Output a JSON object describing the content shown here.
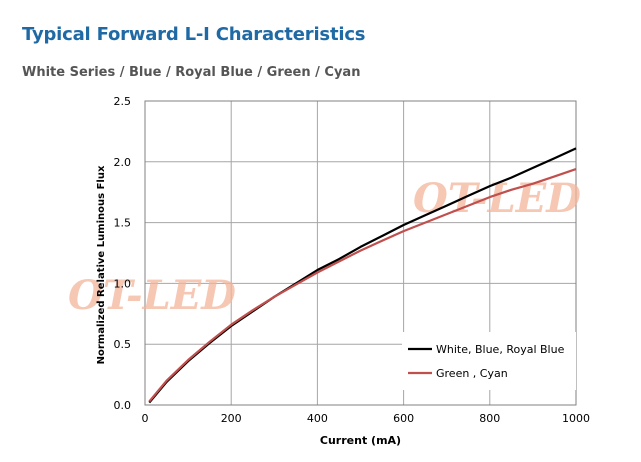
{
  "header": {
    "title": "Typical Forward L-I Characteristics",
    "subtitle": "White Series / Blue / Royal Blue / Green / Cyan"
  },
  "watermark": {
    "text_1": "OT-LED",
    "text_2": "OT-LED",
    "color": "#f3b59a"
  },
  "chart_data": {
    "type": "line",
    "xlabel": "Current (mA)",
    "ylabel": "Normalized Relative Luminous Flux",
    "xlim": [
      0,
      1000
    ],
    "ylim": [
      0,
      2.5
    ],
    "x_ticks": [
      "0",
      "200",
      "400",
      "600",
      "800",
      "1000"
    ],
    "y_ticks": [
      "0.0",
      "0.5",
      "1.0",
      "1.5",
      "2.0",
      "2.5"
    ],
    "grid": true,
    "legend_position": "bottom-right",
    "series": [
      {
        "name": "White, Blue, Royal Blue",
        "color": "#000000",
        "x": [
          10,
          50,
          100,
          150,
          200,
          250,
          300,
          350,
          400,
          450,
          500,
          550,
          600,
          650,
          700,
          750,
          800,
          850,
          900,
          950,
          1000
        ],
        "y": [
          0.02,
          0.19,
          0.36,
          0.51,
          0.65,
          0.77,
          0.89,
          1.0,
          1.11,
          1.2,
          1.3,
          1.39,
          1.48,
          1.56,
          1.64,
          1.72,
          1.8,
          1.87,
          1.95,
          2.03,
          2.11
        ]
      },
      {
        "name": "Green , Cyan",
        "color": "#c0504d",
        "x": [
          10,
          50,
          100,
          150,
          200,
          250,
          300,
          350,
          400,
          450,
          500,
          550,
          600,
          650,
          700,
          750,
          800,
          850,
          900,
          950,
          1000
        ],
        "y": [
          0.03,
          0.2,
          0.37,
          0.52,
          0.66,
          0.78,
          0.89,
          0.99,
          1.09,
          1.18,
          1.27,
          1.35,
          1.43,
          1.5,
          1.57,
          1.64,
          1.71,
          1.77,
          1.82,
          1.88,
          1.94
        ]
      }
    ]
  }
}
